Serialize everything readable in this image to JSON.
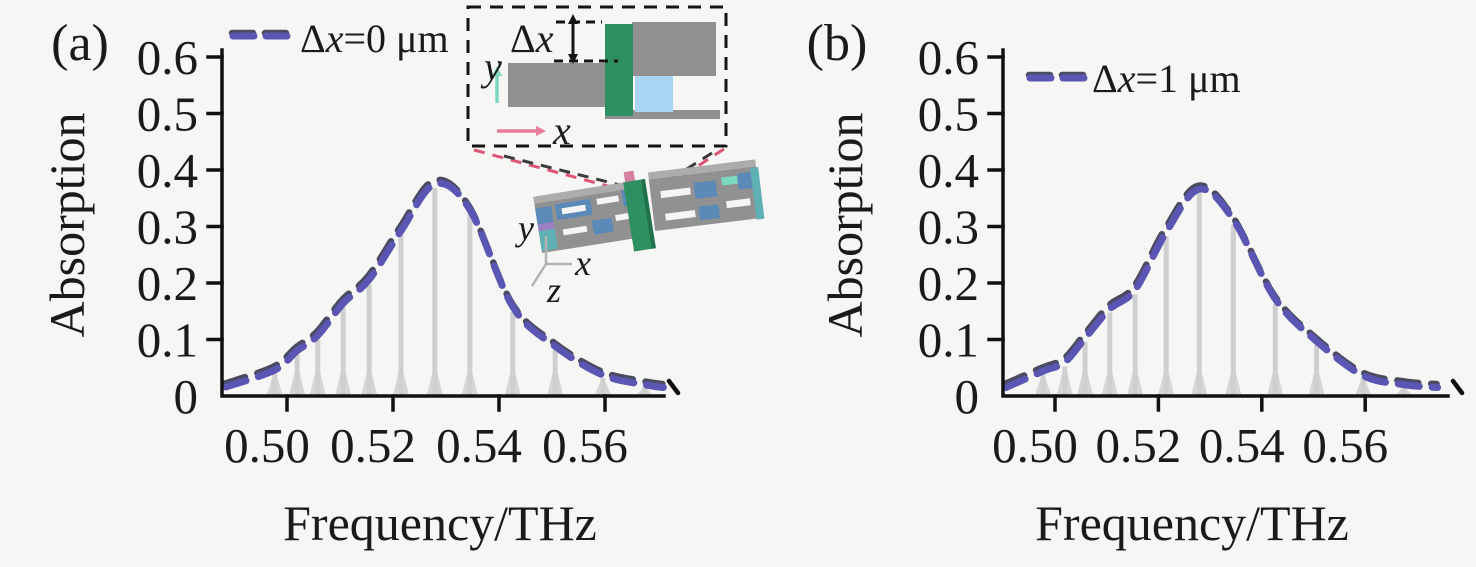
{
  "figure": {
    "background": "#f6f6f4",
    "panels": [
      {
        "label": "(a)"
      },
      {
        "label": "(b)"
      }
    ]
  },
  "colors": {
    "axis": "#111111",
    "text": "#1a1a1a",
    "envelope": "#5b55b4",
    "envelope_shadow": "#20203a",
    "comb_spike": "#cfcfcf",
    "background": "#f6f6f4"
  },
  "chart_data": [
    {
      "type": "bar",
      "panel": "a",
      "xlabel": "Frequency/THz",
      "ylabel": "Absorption",
      "xlim": [
        0.487,
        0.571
      ],
      "ylim": [
        0,
        0.6
      ],
      "xticks": [
        0.5,
        0.52,
        0.54,
        0.56
      ],
      "xtick_labels": [
        "0.50",
        "0.52",
        "0.54",
        "0.56"
      ],
      "yticks": [
        0,
        0.1,
        0.2,
        0.3,
        0.4,
        0.5,
        0.6
      ],
      "ytick_labels": [
        "0",
        "0.1",
        "0.2",
        "0.3",
        "0.4",
        "0.5",
        "0.6"
      ],
      "legend": {
        "delta": "Δ",
        "var": "x",
        "rest": "=0 μm",
        "full": "Δx=0 μm",
        "style": "dashed",
        "position": "above-left"
      },
      "comb": {
        "x": [
          0.4977,
          0.5019,
          0.5058,
          0.5106,
          0.5155,
          0.5215,
          0.5279,
          0.5345,
          0.5426,
          0.5506,
          0.5596,
          0.5675
        ],
        "y": [
          0.04,
          0.074,
          0.1,
          0.158,
          0.198,
          0.284,
          0.368,
          0.321,
          0.149,
          0.082,
          0.032,
          0.016
        ]
      },
      "envelope": {
        "x": [
          0.4885,
          0.4977,
          0.5019,
          0.5058,
          0.5106,
          0.5155,
          0.5215,
          0.5279,
          0.5345,
          0.5426,
          0.5506,
          0.5596,
          0.5675,
          0.571
        ],
        "y": [
          0.016,
          0.046,
          0.08,
          0.107,
          0.164,
          0.206,
          0.292,
          0.375,
          0.33,
          0.158,
          0.088,
          0.037,
          0.02,
          0.015
        ]
      }
    },
    {
      "type": "bar",
      "panel": "b",
      "xlabel": "Frequency/THz",
      "ylabel": "Absorption",
      "xlim": [
        0.487,
        0.576
      ],
      "ylim": [
        0,
        0.6
      ],
      "xticks": [
        0.5,
        0.52,
        0.54,
        0.56
      ],
      "xtick_labels": [
        "0.50",
        "0.52",
        "0.54",
        "0.56"
      ],
      "yticks": [
        0,
        0.1,
        0.2,
        0.3,
        0.4,
        0.5,
        0.6
      ],
      "ytick_labels": [
        "0",
        "0.1",
        "0.2",
        "0.3",
        "0.4",
        "0.5",
        "0.6"
      ],
      "legend": {
        "delta": "Δ",
        "var": "x",
        "rest": "=1 μm",
        "full": "Δx=1 μm",
        "style": "dashed",
        "position": "inside-top-left"
      },
      "comb": {
        "x": [
          0.4977,
          0.5019,
          0.5058,
          0.5106,
          0.5155,
          0.5215,
          0.5279,
          0.5345,
          0.5426,
          0.5506,
          0.5596,
          0.5675
        ],
        "y": [
          0.038,
          0.052,
          0.096,
          0.148,
          0.18,
          0.283,
          0.359,
          0.303,
          0.163,
          0.091,
          0.032,
          0.016
        ]
      },
      "envelope": {
        "x": [
          0.4905,
          0.4977,
          0.5019,
          0.5058,
          0.5106,
          0.5155,
          0.5215,
          0.5279,
          0.5345,
          0.5426,
          0.5506,
          0.5596,
          0.5675,
          0.574
        ],
        "y": [
          0.015,
          0.044,
          0.06,
          0.102,
          0.154,
          0.188,
          0.29,
          0.366,
          0.312,
          0.172,
          0.097,
          0.036,
          0.02,
          0.015
        ]
      }
    }
  ],
  "inset": {
    "delta_label_delta": "Δ",
    "delta_label_var": "x",
    "axis_x": "x",
    "axis_y": "y",
    "device_axis_x": "x",
    "device_axis_y": "y",
    "device_axis_z": "z",
    "colors": {
      "gray": "#919191",
      "gray_light": "#acacac",
      "green": "#2e9060",
      "green_dark": "#20714c",
      "light_blue": "#a9d5f2",
      "teal": "#5fb0b5",
      "blue": "#5b8ab8",
      "purple": "#9c80c4",
      "pink": "#e87a9a",
      "mint": "#7dd8c0",
      "slit": "#f5f5f5",
      "rose": "#d480a0"
    }
  }
}
